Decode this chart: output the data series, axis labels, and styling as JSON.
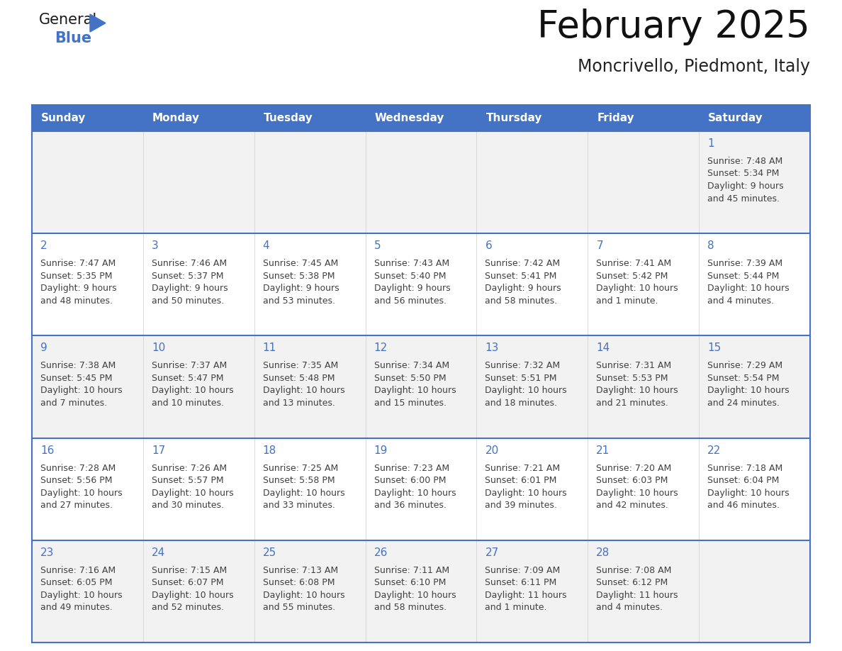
{
  "title": "February 2025",
  "subtitle": "Moncrivello, Piedmont, Italy",
  "days_of_week": [
    "Sunday",
    "Monday",
    "Tuesday",
    "Wednesday",
    "Thursday",
    "Friday",
    "Saturday"
  ],
  "header_bg": "#4472C4",
  "header_text": "#FFFFFF",
  "cell_bg_row0": "#F2F2F2",
  "cell_bg_row1": "#FFFFFF",
  "cell_bg_row2": "#F2F2F2",
  "cell_bg_row3": "#FFFFFF",
  "cell_bg_row4": "#F2F2F2",
  "border_color": "#4472C4",
  "day_number_color": "#4472C4",
  "text_color": "#404040",
  "calendar_data": [
    [
      null,
      null,
      null,
      null,
      null,
      null,
      {
        "day": "1",
        "sunrise": "7:48 AM",
        "sunset": "5:34 PM",
        "daylight": "9 hours",
        "daylight2": "and 45 minutes."
      }
    ],
    [
      {
        "day": "2",
        "sunrise": "7:47 AM",
        "sunset": "5:35 PM",
        "daylight": "9 hours",
        "daylight2": "and 48 minutes."
      },
      {
        "day": "3",
        "sunrise": "7:46 AM",
        "sunset": "5:37 PM",
        "daylight": "9 hours",
        "daylight2": "and 50 minutes."
      },
      {
        "day": "4",
        "sunrise": "7:45 AM",
        "sunset": "5:38 PM",
        "daylight": "9 hours",
        "daylight2": "and 53 minutes."
      },
      {
        "day": "5",
        "sunrise": "7:43 AM",
        "sunset": "5:40 PM",
        "daylight": "9 hours",
        "daylight2": "and 56 minutes."
      },
      {
        "day": "6",
        "sunrise": "7:42 AM",
        "sunset": "5:41 PM",
        "daylight": "9 hours",
        "daylight2": "and 58 minutes."
      },
      {
        "day": "7",
        "sunrise": "7:41 AM",
        "sunset": "5:42 PM",
        "daylight": "10 hours",
        "daylight2": "and 1 minute."
      },
      {
        "day": "8",
        "sunrise": "7:39 AM",
        "sunset": "5:44 PM",
        "daylight": "10 hours",
        "daylight2": "and 4 minutes."
      }
    ],
    [
      {
        "day": "9",
        "sunrise": "7:38 AM",
        "sunset": "5:45 PM",
        "daylight": "10 hours",
        "daylight2": "and 7 minutes."
      },
      {
        "day": "10",
        "sunrise": "7:37 AM",
        "sunset": "5:47 PM",
        "daylight": "10 hours",
        "daylight2": "and 10 minutes."
      },
      {
        "day": "11",
        "sunrise": "7:35 AM",
        "sunset": "5:48 PM",
        "daylight": "10 hours",
        "daylight2": "and 13 minutes."
      },
      {
        "day": "12",
        "sunrise": "7:34 AM",
        "sunset": "5:50 PM",
        "daylight": "10 hours",
        "daylight2": "and 15 minutes."
      },
      {
        "day": "13",
        "sunrise": "7:32 AM",
        "sunset": "5:51 PM",
        "daylight": "10 hours",
        "daylight2": "and 18 minutes."
      },
      {
        "day": "14",
        "sunrise": "7:31 AM",
        "sunset": "5:53 PM",
        "daylight": "10 hours",
        "daylight2": "and 21 minutes."
      },
      {
        "day": "15",
        "sunrise": "7:29 AM",
        "sunset": "5:54 PM",
        "daylight": "10 hours",
        "daylight2": "and 24 minutes."
      }
    ],
    [
      {
        "day": "16",
        "sunrise": "7:28 AM",
        "sunset": "5:56 PM",
        "daylight": "10 hours",
        "daylight2": "and 27 minutes."
      },
      {
        "day": "17",
        "sunrise": "7:26 AM",
        "sunset": "5:57 PM",
        "daylight": "10 hours",
        "daylight2": "and 30 minutes."
      },
      {
        "day": "18",
        "sunrise": "7:25 AM",
        "sunset": "5:58 PM",
        "daylight": "10 hours",
        "daylight2": "and 33 minutes."
      },
      {
        "day": "19",
        "sunrise": "7:23 AM",
        "sunset": "6:00 PM",
        "daylight": "10 hours",
        "daylight2": "and 36 minutes."
      },
      {
        "day": "20",
        "sunrise": "7:21 AM",
        "sunset": "6:01 PM",
        "daylight": "10 hours",
        "daylight2": "and 39 minutes."
      },
      {
        "day": "21",
        "sunrise": "7:20 AM",
        "sunset": "6:03 PM",
        "daylight": "10 hours",
        "daylight2": "and 42 minutes."
      },
      {
        "day": "22",
        "sunrise": "7:18 AM",
        "sunset": "6:04 PM",
        "daylight": "10 hours",
        "daylight2": "and 46 minutes."
      }
    ],
    [
      {
        "day": "23",
        "sunrise": "7:16 AM",
        "sunset": "6:05 PM",
        "daylight": "10 hours",
        "daylight2": "and 49 minutes."
      },
      {
        "day": "24",
        "sunrise": "7:15 AM",
        "sunset": "6:07 PM",
        "daylight": "10 hours",
        "daylight2": "and 52 minutes."
      },
      {
        "day": "25",
        "sunrise": "7:13 AM",
        "sunset": "6:08 PM",
        "daylight": "10 hours",
        "daylight2": "and 55 minutes."
      },
      {
        "day": "26",
        "sunrise": "7:11 AM",
        "sunset": "6:10 PM",
        "daylight": "10 hours",
        "daylight2": "and 58 minutes."
      },
      {
        "day": "27",
        "sunrise": "7:09 AM",
        "sunset": "6:11 PM",
        "daylight": "11 hours",
        "daylight2": "and 1 minute."
      },
      {
        "day": "28",
        "sunrise": "7:08 AM",
        "sunset": "6:12 PM",
        "daylight": "11 hours",
        "daylight2": "and 4 minutes."
      },
      null
    ]
  ],
  "logo_general_color": "#1a1a1a",
  "logo_blue_color": "#4472C4",
  "logo_triangle_color": "#4472C4"
}
